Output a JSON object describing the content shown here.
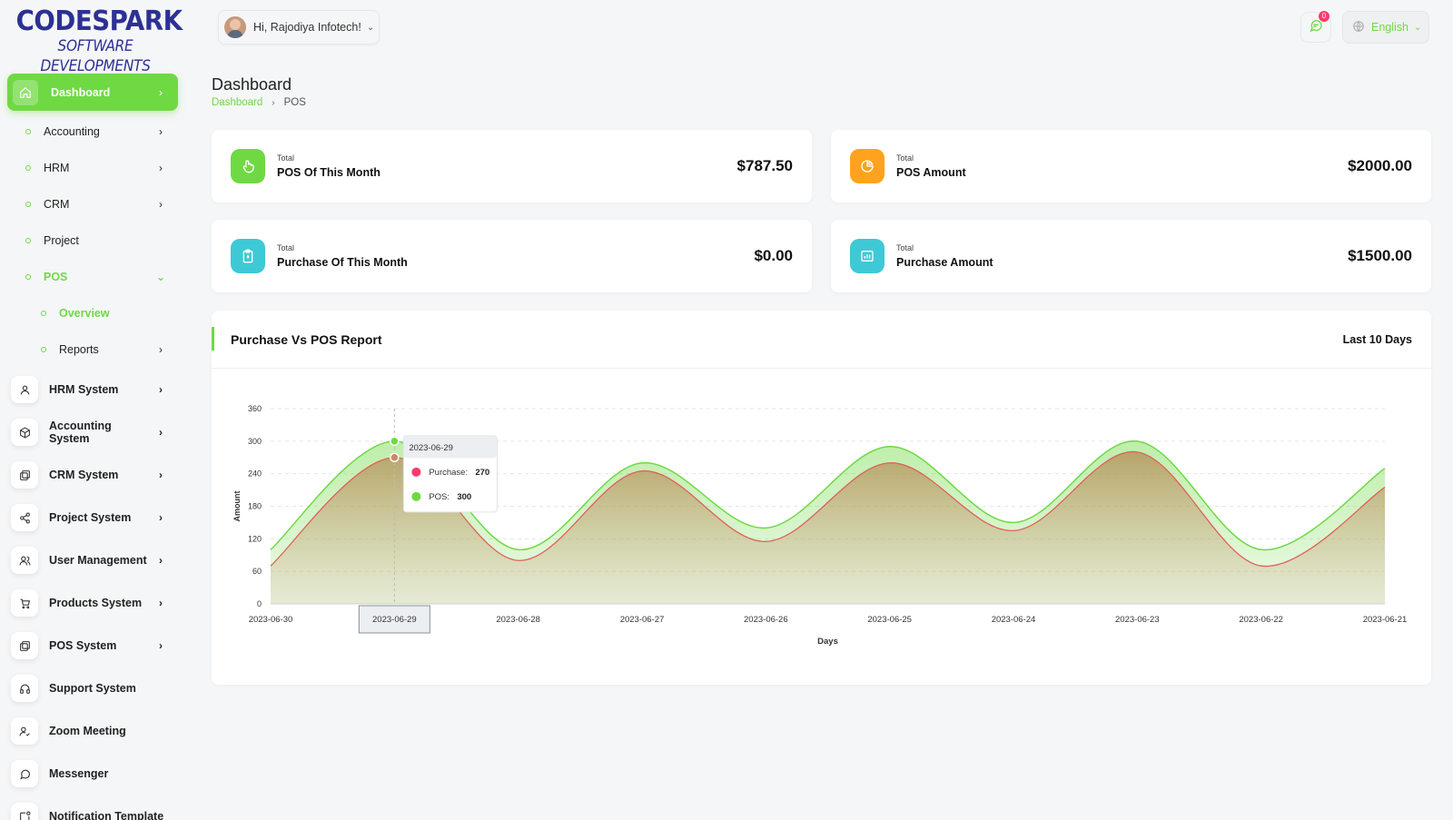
{
  "brand": {
    "line1": "CODESPARK",
    "line2": "SOFTWARE DEVELOPMENTS"
  },
  "sidebar": {
    "active": {
      "label": "Dashboard"
    },
    "subitems": [
      {
        "label": "Accounting"
      },
      {
        "label": "HRM"
      },
      {
        "label": "CRM"
      },
      {
        "label": "Project"
      },
      {
        "label": "POS"
      },
      {
        "label": "Overview"
      },
      {
        "label": "Reports"
      }
    ],
    "items": [
      {
        "label": "HRM System"
      },
      {
        "label": "Accounting System"
      },
      {
        "label": "CRM System"
      },
      {
        "label": "Project System"
      },
      {
        "label": "User Management"
      },
      {
        "label": "Products System"
      },
      {
        "label": "POS System"
      },
      {
        "label": "Support System"
      },
      {
        "label": "Zoom Meeting"
      },
      {
        "label": "Messenger"
      },
      {
        "label": "Notification Template"
      }
    ]
  },
  "header": {
    "greeting": "Hi, Rajodiya Infotech!",
    "notification_count": "0",
    "language": "English"
  },
  "page": {
    "title": "Dashboard",
    "breadcrumb": [
      "Dashboard",
      "POS"
    ]
  },
  "stats": [
    {
      "small": "Total",
      "label": "POS Of This Month",
      "value": "$787.50",
      "color": "#6fd943",
      "icon": "hand-pointer-icon"
    },
    {
      "small": "Total",
      "label": "POS Amount",
      "value": "$2000.00",
      "color": "#ffa21d",
      "icon": "pie-chart-icon"
    },
    {
      "small": "Total",
      "label": "Purchase Of This Month",
      "value": "$0.00",
      "color": "#3ec9d6",
      "icon": "clipboard-icon"
    },
    {
      "small": "Total",
      "label": "Purchase Amount",
      "value": "$1500.00",
      "color": "#3ec9d6",
      "icon": "bar-chart-icon"
    }
  ],
  "report": {
    "title": "Purchase Vs POS Report",
    "range": "Last 10 Days"
  },
  "chart_data": {
    "type": "area",
    "x": [
      "2023-06-30",
      "2023-06-29",
      "2023-06-28",
      "2023-06-27",
      "2023-06-26",
      "2023-06-25",
      "2023-06-24",
      "2023-06-23",
      "2023-06-22",
      "2023-06-21"
    ],
    "series": [
      {
        "name": "Purchase",
        "values": [
          70,
          270,
          80,
          245,
          115,
          260,
          135,
          280,
          70,
          215
        ],
        "color": "#ff3a6e"
      },
      {
        "name": "POS",
        "values": [
          100,
          300,
          100,
          260,
          140,
          290,
          150,
          300,
          100,
          250
        ],
        "color": "#6fd943"
      }
    ],
    "xlabel": "Days",
    "ylabel": "Amount",
    "yticks": [
      0,
      60,
      120,
      180,
      240,
      300,
      360
    ],
    "ylim": [
      0,
      360
    ],
    "grid": true,
    "tooltip": {
      "x": "2023-06-29",
      "rows": [
        {
          "name": "Purchase",
          "value": "270"
        },
        {
          "name": "POS",
          "value": "300"
        }
      ]
    }
  }
}
